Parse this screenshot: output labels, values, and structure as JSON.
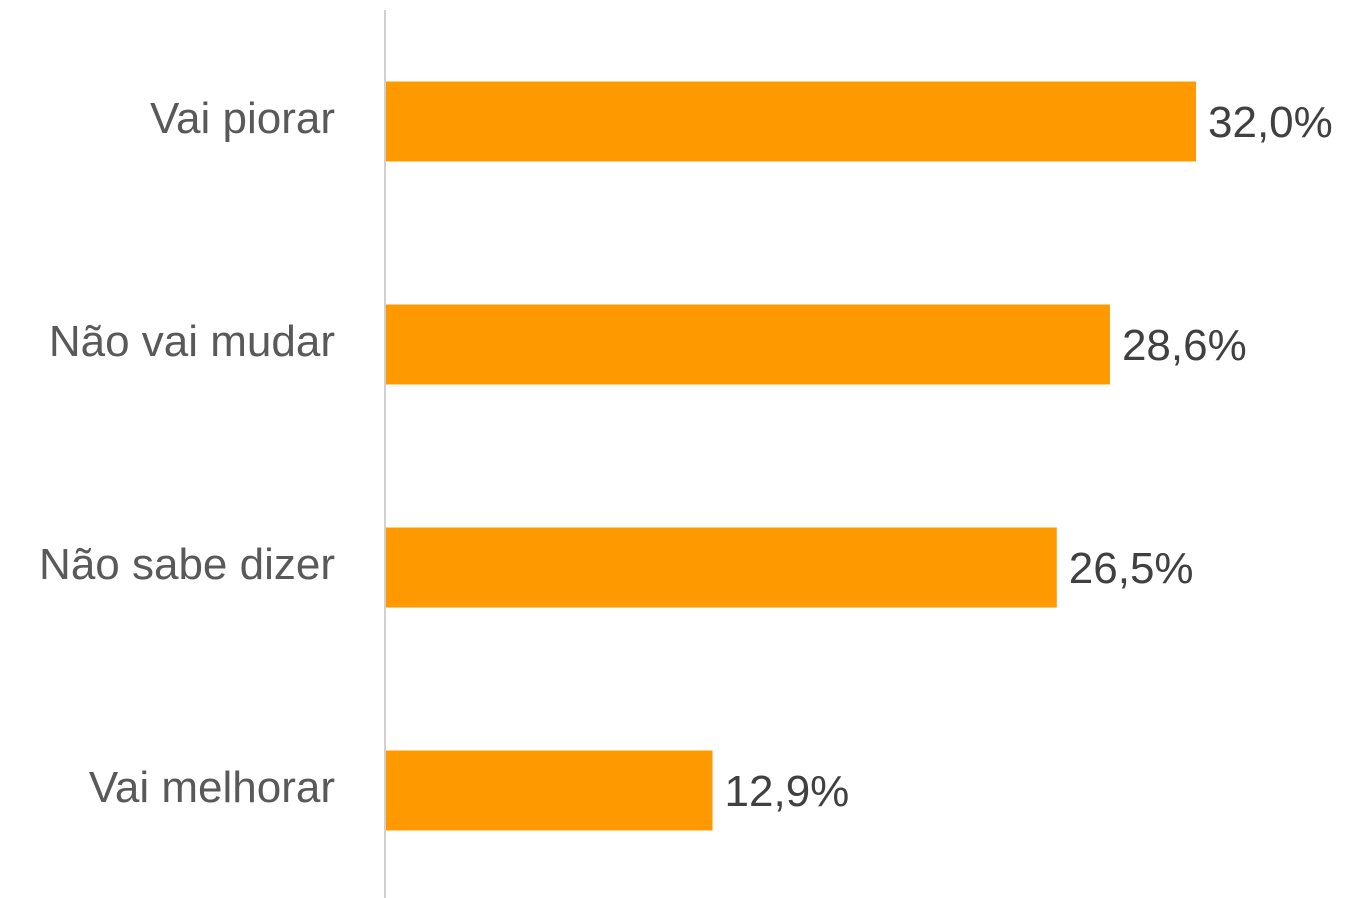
{
  "chart_data": {
    "type": "barh",
    "categories": [
      "Vai piorar",
      "Não vai mudar",
      "Não sabe dizer",
      "Vai melhorar"
    ],
    "values": [
      32.0,
      28.6,
      26.5,
      12.9
    ],
    "value_labels": [
      "32,0%",
      "28,6%",
      "26,5%",
      "12,9%"
    ],
    "color": "#ff9900"
  }
}
